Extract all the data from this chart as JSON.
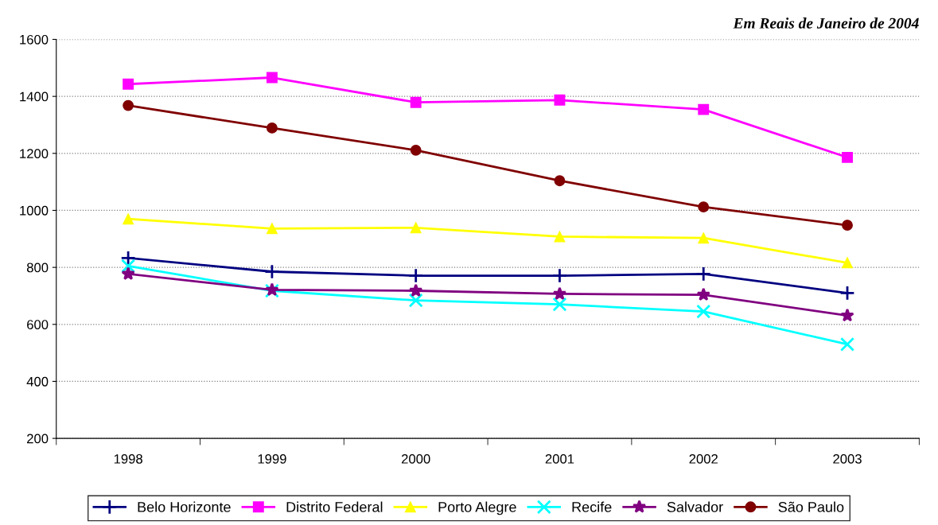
{
  "chart_data": {
    "type": "line",
    "title": "Em Reais de Janeiro de 2004",
    "categories": [
      "1998",
      "1999",
      "2000",
      "2001",
      "2002",
      "2003"
    ],
    "series": [
      {
        "name": "Belo Horizonte",
        "color": "#000080",
        "marker": "cross",
        "values": [
          833,
          785,
          771,
          771,
          777,
          710
        ]
      },
      {
        "name": "Distrito Federal",
        "color": "#ff00ff",
        "marker": "square",
        "values": [
          1443,
          1466,
          1379,
          1387,
          1354,
          1186
        ]
      },
      {
        "name": "Porto Alegre",
        "color": "#ffff00",
        "marker": "triangle",
        "values": [
          970,
          936,
          939,
          908,
          903,
          816
        ]
      },
      {
        "name": "Recife",
        "color": "#00ffff",
        "marker": "cross",
        "values": [
          805,
          718,
          684,
          670,
          645,
          530
        ]
      },
      {
        "name": "Salvador",
        "color": "#800080",
        "marker": "star",
        "values": [
          777,
          721,
          718,
          707,
          704,
          631
        ]
      },
      {
        "name": "São Paulo",
        "color": "#800000",
        "marker": "circle",
        "values": [
          1368,
          1289,
          1211,
          1104,
          1012,
          948
        ]
      }
    ],
    "ylim": [
      200,
      1600
    ],
    "yticks": [
      200,
      400,
      600,
      800,
      1000,
      1200,
      1400,
      1600
    ],
    "grid": "y",
    "legend": "bottom",
    "line_style": "solid"
  }
}
